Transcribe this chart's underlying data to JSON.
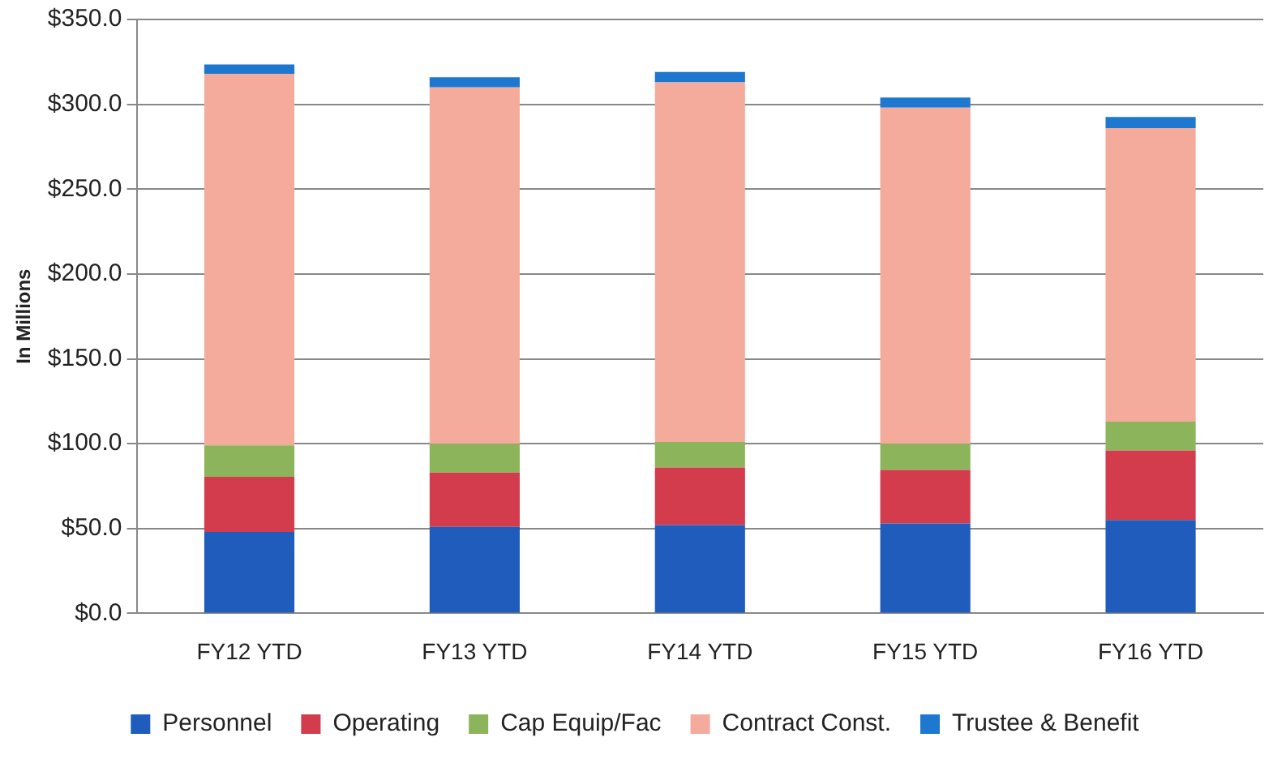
{
  "chart_data": {
    "type": "bar",
    "stacked": true,
    "ylabel": "In Millions",
    "categories": [
      "FY12 YTD",
      "FY13 YTD",
      "FY14 YTD",
      "FY15 YTD",
      "FY16 YTD"
    ],
    "series": [
      {
        "name": "Personnel",
        "color": "#1f5cbc",
        "values": [
          48,
          51,
          52,
          53,
          55
        ]
      },
      {
        "name": "Operating",
        "color": "#d23c4c",
        "values": [
          32.5,
          32,
          34,
          31.5,
          41
        ]
      },
      {
        "name": "Cap Equip/Fac",
        "color": "#8cb45a",
        "values": [
          18.5,
          17,
          15,
          15.5,
          17
        ]
      },
      {
        "name": "Contract Const.",
        "color": "#f4ab9c",
        "values": [
          219,
          210,
          212,
          198,
          173
        ]
      },
      {
        "name": "Trustee & Benefit",
        "color": "#1f78d0",
        "values": [
          5.5,
          6,
          6,
          6,
          6.5
        ]
      }
    ],
    "ylim": [
      0,
      350
    ],
    "yticks": [
      {
        "value": 0,
        "label": "$0.0"
      },
      {
        "value": 50,
        "label": "$50.0"
      },
      {
        "value": 100,
        "label": "$100.0"
      },
      {
        "value": 150,
        "label": "$150.0"
      },
      {
        "value": 200,
        "label": "$200.0"
      },
      {
        "value": 250,
        "label": "$250.0"
      },
      {
        "value": 300,
        "label": "$300.0"
      },
      {
        "value": 350,
        "label": "$350.0"
      }
    ],
    "grid": "y",
    "legend": "bottom"
  }
}
